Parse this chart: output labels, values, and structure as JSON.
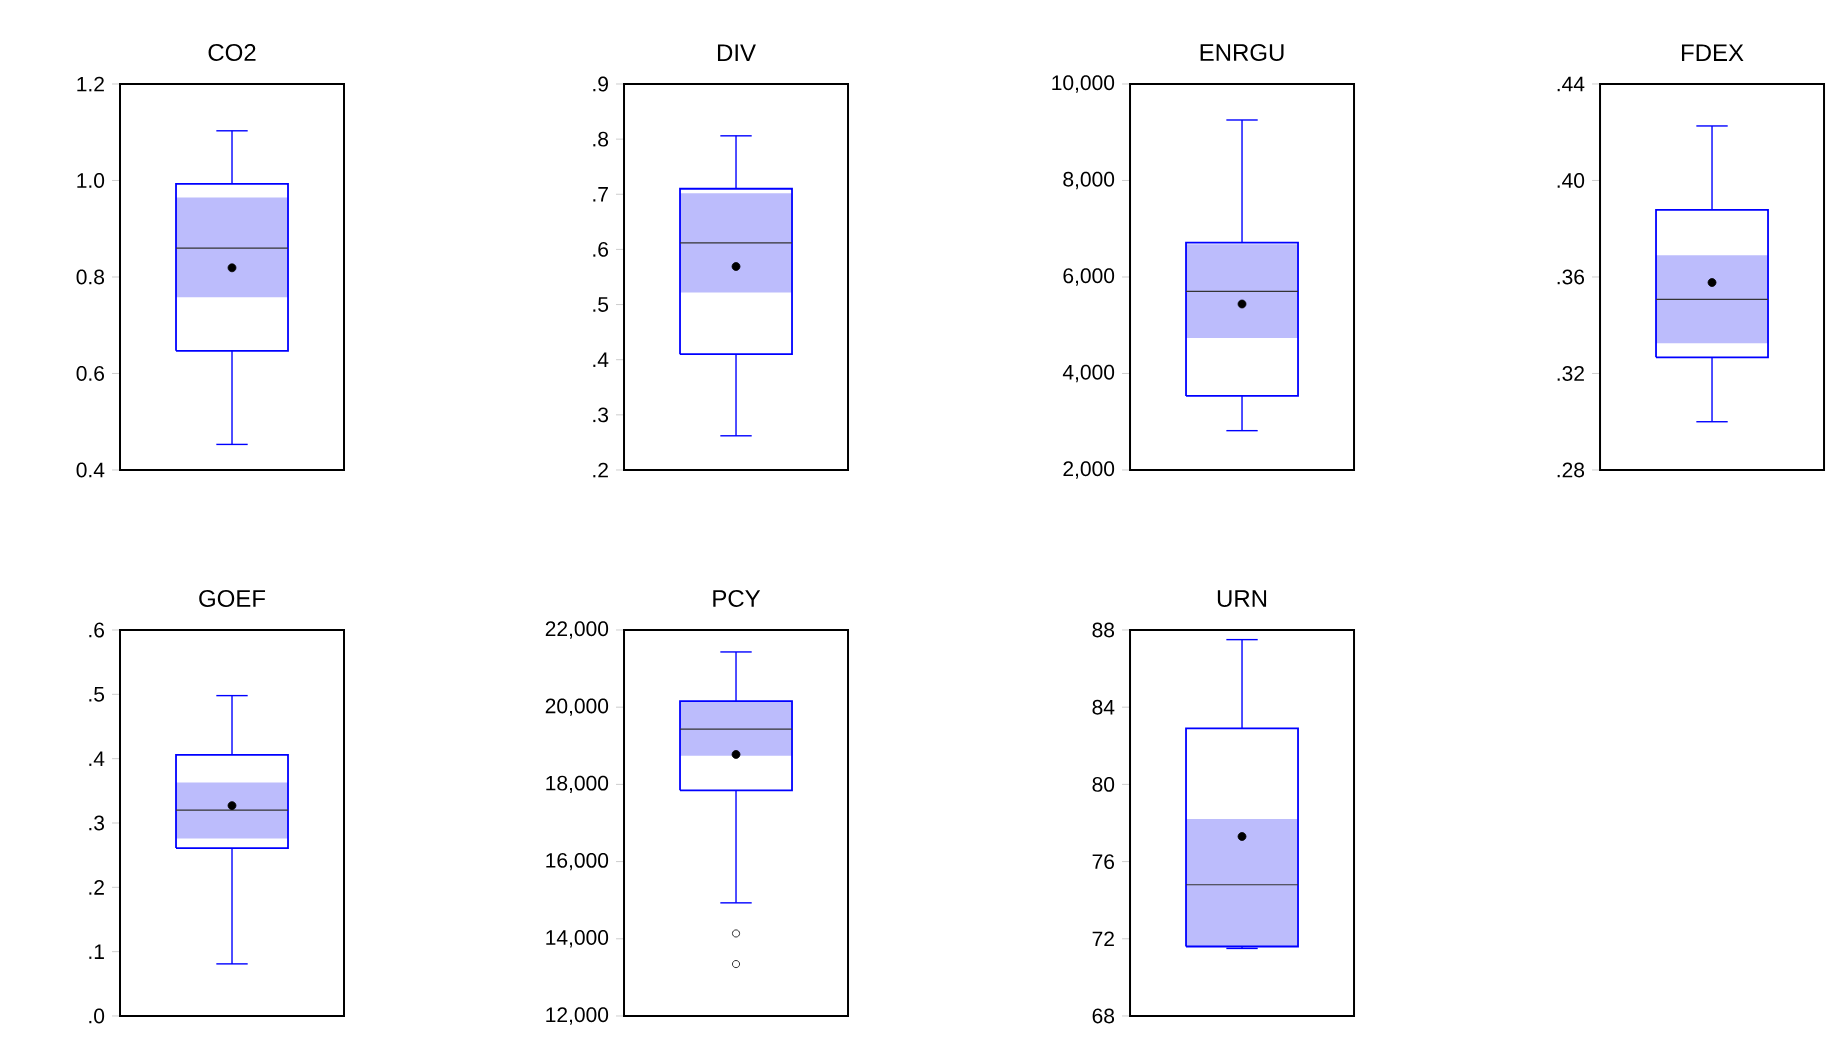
{
  "chart_data": [
    {
      "type": "box",
      "title": "CO2",
      "categories": [
        null
      ],
      "color": "#0000ff",
      "boxes": [
        {
          "low": 0.453,
          "q1": 0.647,
          "median": 0.86,
          "q3": 0.993,
          "high": 1.103,
          "mean": 0.819
        }
      ],
      "bands": [
        {
          "axis": "y",
          "from": 0.758,
          "to": 0.965,
          "color": "#bcbcfc"
        }
      ],
      "ylim": [
        0.4,
        1.2
      ],
      "yticks": [
        0.4,
        0.6,
        0.8,
        {
          "value": 1.0,
          "label": "1.0"
        },
        1.2
      ]
    },
    {
      "type": "box",
      "title": "DIV",
      "categories": [
        null
      ],
      "color": "#0000ff",
      "boxes": [
        {
          "low": 0.262,
          "q1": 0.41,
          "median": 0.612,
          "q3": 0.71,
          "high": 0.806,
          "mean": 0.569
        }
      ],
      "bands": [
        {
          "axis": "y",
          "from": 0.522,
          "to": 0.702,
          "color": "#bcbcfc"
        }
      ],
      "ylim": [
        0.2,
        0.9
      ],
      "yticks": [
        {
          "value": 0.2,
          "label": ".2"
        },
        {
          "value": 0.3,
          "label": ".3"
        },
        {
          "value": 0.4,
          "label": ".4"
        },
        {
          "value": 0.5,
          "label": ".5"
        },
        {
          "value": 0.6,
          "label": ".6"
        },
        {
          "value": 0.7,
          "label": ".7"
        },
        {
          "value": 0.8,
          "label": ".8"
        },
        {
          "value": 0.9,
          "label": ".9"
        }
      ]
    },
    {
      "type": "box",
      "title": "ENRGU",
      "categories": [
        null
      ],
      "color": "#0000ff",
      "boxes": [
        {
          "low": 2815,
          "q1": 3534,
          "median": 5703,
          "q3": 6712,
          "high": 9254,
          "mean": 5440
        }
      ],
      "bands": [
        {
          "axis": "y",
          "from": 4736,
          "to": 6680,
          "color": "#bcbcfc"
        }
      ],
      "ylim": [
        2000,
        10000
      ],
      "yticks": [
        {
          "value": 2000,
          "label": "2,000"
        },
        {
          "value": 4000,
          "label": "4,000"
        },
        {
          "value": 6000,
          "label": "6,000"
        },
        {
          "value": 8000,
          "label": "8,000"
        },
        {
          "value": 10000,
          "label": "10,000"
        }
      ]
    },
    {
      "type": "box",
      "title": "FDEX",
      "categories": [
        null
      ],
      "color": "#0000ff",
      "boxes": [
        {
          "low": 0.3,
          "q1": 0.3267,
          "median": 0.3507,
          "q3": 0.3878,
          "high": 0.4226,
          "mean": 0.3577
        }
      ],
      "bands": [
        {
          "axis": "y",
          "from": 0.3325,
          "to": 0.369,
          "color": "#bcbcfc"
        }
      ],
      "ylim": [
        0.28,
        0.44
      ],
      "yticks": [
        {
          "value": 0.28,
          "label": ".28"
        },
        {
          "value": 0.32,
          "label": ".32"
        },
        {
          "value": 0.36,
          "label": ".36"
        },
        {
          "value": 0.4,
          "label": ".40"
        },
        {
          "value": 0.44,
          "label": ".44"
        }
      ]
    },
    {
      "type": "box",
      "title": "GOEF",
      "categories": [
        null
      ],
      "color": "#0000ff",
      "boxes": [
        {
          "low": 0.081,
          "q1": 0.261,
          "median": 0.32,
          "q3": 0.406,
          "high": 0.498,
          "mean": 0.327
        }
      ],
      "bands": [
        {
          "axis": "y",
          "from": 0.276,
          "to": 0.363,
          "color": "#bcbcfc"
        }
      ],
      "ylim": [
        0.0,
        0.6
      ],
      "yticks": [
        {
          "value": 0.0,
          "label": ".0"
        },
        {
          "value": 0.1,
          "label": ".1"
        },
        {
          "value": 0.2,
          "label": ".2"
        },
        {
          "value": 0.3,
          "label": ".3"
        },
        {
          "value": 0.4,
          "label": ".4"
        },
        {
          "value": 0.5,
          "label": ".5"
        },
        {
          "value": 0.6,
          "label": ".6"
        }
      ]
    },
    {
      "type": "box",
      "title": "PCY",
      "categories": [
        null
      ],
      "color": "#0000ff",
      "boxes": [
        {
          "low": 14931,
          "q1": 17845,
          "median": 19431,
          "q3": 20155,
          "high": 21431,
          "mean": 18776,
          "outliers": [
            14138,
            13345
          ]
        }
      ],
      "bands": [
        {
          "axis": "y",
          "from": 18741,
          "to": 20150,
          "color": "#bcbcfc"
        }
      ],
      "ylim": [
        12000,
        22000
      ],
      "yticks": [
        {
          "value": 12000,
          "label": "12,000"
        },
        {
          "value": 14000,
          "label": "14,000"
        },
        {
          "value": 16000,
          "label": "16,000"
        },
        {
          "value": 18000,
          "label": "18,000"
        },
        {
          "value": 20000,
          "label": "20,000"
        },
        {
          "value": 22000,
          "label": "22,000"
        }
      ]
    },
    {
      "type": "box",
      "title": "URN",
      "categories": [
        null
      ],
      "color": "#0000ff",
      "boxes": [
        {
          "low": 71.5,
          "q1": 71.6,
          "median": 74.8,
          "q3": 82.9,
          "high": 87.5,
          "mean": 77.3
        }
      ],
      "bands": [
        {
          "axis": "y",
          "from": 71.6,
          "to": 78.2,
          "color": "#bcbcfc"
        }
      ],
      "ylim": [
        68,
        88
      ],
      "yticks": [
        68,
        72,
        76,
        80,
        84,
        88
      ]
    }
  ]
}
